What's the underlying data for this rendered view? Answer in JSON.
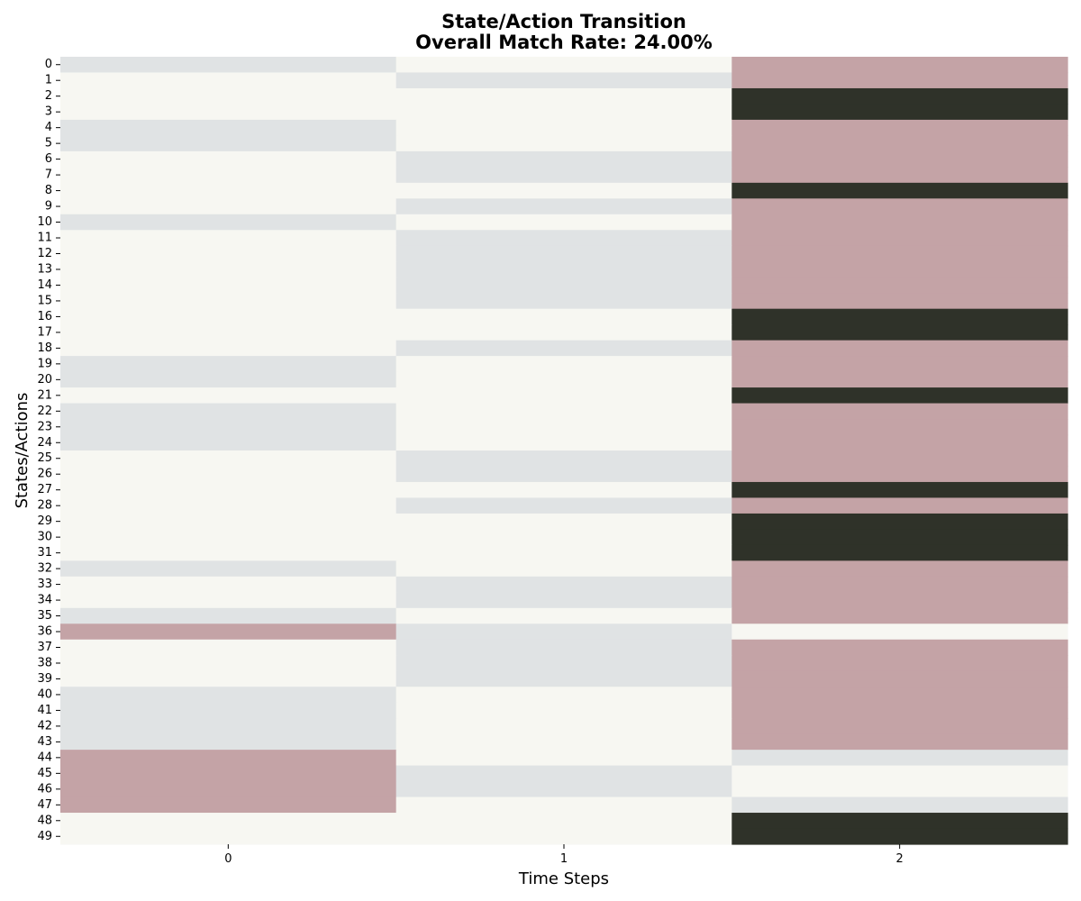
{
  "chart_data": {
    "type": "heatmap",
    "title": "State/Action Transition",
    "subtitle": "Overall Match Rate: 24.00%",
    "xlabel": "Time Steps",
    "ylabel": "States/Actions",
    "x_categories": [
      "0",
      "1",
      "2"
    ],
    "y_categories": [
      "0",
      "1",
      "2",
      "3",
      "4",
      "5",
      "6",
      "7",
      "8",
      "9",
      "10",
      "11",
      "12",
      "13",
      "14",
      "15",
      "16",
      "17",
      "18",
      "19",
      "20",
      "21",
      "22",
      "23",
      "24",
      "25",
      "26",
      "27",
      "28",
      "29",
      "30",
      "31",
      "32",
      "33",
      "34",
      "35",
      "36",
      "37",
      "38",
      "39",
      "40",
      "41",
      "42",
      "43",
      "44",
      "45",
      "46",
      "47",
      "48",
      "49"
    ],
    "palette": [
      "#f7f7f2",
      "#e0e3e4",
      "#c4a3a6",
      "#2f3229"
    ],
    "colorbar": false,
    "grid": false,
    "values": [
      [
        1,
        0,
        2
      ],
      [
        0,
        1,
        2
      ],
      [
        0,
        0,
        3
      ],
      [
        0,
        0,
        3
      ],
      [
        1,
        0,
        2
      ],
      [
        1,
        0,
        2
      ],
      [
        0,
        1,
        2
      ],
      [
        0,
        1,
        2
      ],
      [
        0,
        0,
        3
      ],
      [
        0,
        1,
        2
      ],
      [
        1,
        0,
        2
      ],
      [
        0,
        1,
        2
      ],
      [
        0,
        1,
        2
      ],
      [
        0,
        1,
        2
      ],
      [
        0,
        1,
        2
      ],
      [
        0,
        1,
        2
      ],
      [
        0,
        0,
        3
      ],
      [
        0,
        0,
        3
      ],
      [
        0,
        1,
        2
      ],
      [
        1,
        0,
        2
      ],
      [
        1,
        0,
        2
      ],
      [
        0,
        0,
        3
      ],
      [
        1,
        0,
        2
      ],
      [
        1,
        0,
        2
      ],
      [
        1,
        0,
        2
      ],
      [
        0,
        1,
        2
      ],
      [
        0,
        1,
        2
      ],
      [
        0,
        0,
        3
      ],
      [
        0,
        1,
        2
      ],
      [
        0,
        0,
        3
      ],
      [
        0,
        0,
        3
      ],
      [
        0,
        0,
        3
      ],
      [
        1,
        0,
        2
      ],
      [
        0,
        1,
        2
      ],
      [
        0,
        1,
        2
      ],
      [
        1,
        0,
        2
      ],
      [
        2,
        1,
        0
      ],
      [
        0,
        1,
        2
      ],
      [
        0,
        1,
        2
      ],
      [
        0,
        1,
        2
      ],
      [
        1,
        0,
        2
      ],
      [
        1,
        0,
        2
      ],
      [
        1,
        0,
        2
      ],
      [
        1,
        0,
        2
      ],
      [
        2,
        0,
        1
      ],
      [
        2,
        1,
        0
      ],
      [
        2,
        1,
        0
      ],
      [
        2,
        0,
        1
      ],
      [
        0,
        0,
        3
      ],
      [
        0,
        0,
        3
      ]
    ]
  }
}
